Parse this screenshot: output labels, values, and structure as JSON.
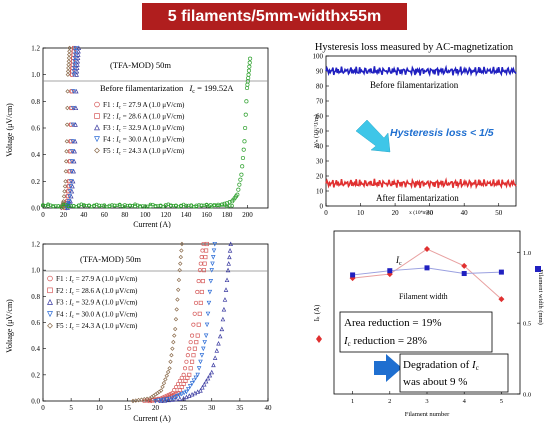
{
  "banner": {
    "title": "5 filaments/5mm-widthx55m"
  },
  "colors": {
    "banner": "#b01e1e",
    "F1": "#d65a5a",
    "F2": "#d65a5a",
    "F3": "#3a3aa0",
    "F4": "#2c6cd6",
    "F5": "#8a6a4a",
    "full": "#2ca02c",
    "green": "#2ca02c",
    "red": "#e03030",
    "blue": "#2020c0",
    "black": "#000000",
    "arrow": "#3ec6e8",
    "arrow2": "#1f6fd0"
  },
  "chart_data": [
    {
      "type": "line",
      "panel": "top-left",
      "xlabel": "Current (A)",
      "ylabel": "Voltage (μV/cm)",
      "xlim": [
        0,
        220
      ],
      "ylim": [
        0,
        1.2
      ],
      "xticks": [
        "0",
        "20",
        "40",
        "60",
        "80",
        "100",
        "120",
        "140",
        "160",
        "180",
        "200"
      ],
      "yticks": [
        "0.0",
        "0.2",
        "0.4",
        "0.6",
        "0.8",
        "1.0",
        "1.2"
      ],
      "annotations": {
        "header": "(TFA-MOD) 50m",
        "before": "Before filamentarization",
        "before_ic": "I",
        "before_ic_sub": "c",
        "before_ic_value": " = 199.52A"
      },
      "legend": [
        {
          "name": "F1",
          "label_prefix": "F1 : ",
          "ic_value": " = 27.9 A (1.0 μV/cm)",
          "marker": "circle",
          "color": "#d65a5a"
        },
        {
          "name": "F2",
          "label_prefix": "F2 : ",
          "ic_value": " = 28.6 A (1.0 μV/cm)",
          "marker": "square",
          "color": "#d65a5a"
        },
        {
          "name": "F3",
          "label_prefix": "F3 : ",
          "ic_value": " = 32.9 A (1.0 μV/cm)",
          "marker": "triangle",
          "color": "#3a3aa0"
        },
        {
          "name": "F4",
          "label_prefix": "F4 : ",
          "ic_value": " = 30.0 A (1.0 μV/cm)",
          "marker": "triangle-down",
          "color": "#2c6cd6"
        },
        {
          "name": "F5",
          "label_prefix": "F5 : ",
          "ic_value": " = 24.3 A (1.0 μV/cm)",
          "marker": "diamond",
          "color": "#8a6a4a"
        }
      ],
      "series": [
        {
          "name": "F1",
          "x": [
            21,
            23,
            25,
            26.5,
            27.9,
            29,
            30
          ],
          "y": [
            0.0,
            0.05,
            0.2,
            0.5,
            1.0,
            1.1,
            1.2
          ]
        },
        {
          "name": "F2",
          "x": [
            22,
            24,
            26,
            27.5,
            28.6,
            29.5,
            30.5
          ],
          "y": [
            0.0,
            0.05,
            0.2,
            0.5,
            1.0,
            1.1,
            1.2
          ]
        },
        {
          "name": "F3",
          "x": [
            24,
            27,
            29.5,
            31.5,
            32.9,
            34,
            35
          ],
          "y": [
            0.0,
            0.05,
            0.2,
            0.5,
            1.0,
            1.1,
            1.2
          ]
        },
        {
          "name": "F4",
          "x": [
            23,
            25.5,
            27.5,
            29,
            30.0,
            31,
            32
          ],
          "y": [
            0.0,
            0.05,
            0.2,
            0.5,
            1.0,
            1.1,
            1.2
          ]
        },
        {
          "name": "F5",
          "x": [
            18,
            20,
            22,
            23.3,
            24.3,
            25.2,
            26
          ],
          "y": [
            0.0,
            0.05,
            0.2,
            0.5,
            1.0,
            1.1,
            1.2
          ]
        },
        {
          "name": "",
          "x": [
            0,
            20,
            40,
            60,
            80,
            100,
            120,
            140,
            160,
            175,
            185,
            190,
            194,
            197,
            199.5,
            201,
            202.5
          ],
          "y": [
            0.02,
            0.01,
            0.02,
            0.015,
            0.02,
            0.01,
            0.02,
            0.015,
            0.02,
            0.025,
            0.05,
            0.1,
            0.25,
            0.5,
            0.9,
            1.0,
            1.12
          ]
        }
      ]
    },
    {
      "type": "line",
      "panel": "bottom-left",
      "xlabel": "Current (A)",
      "ylabel": "Voltage (μV/cm)",
      "xlim": [
        0,
        40
      ],
      "ylim": [
        0,
        1.2
      ],
      "xticks": [
        "0",
        "5",
        "10",
        "15",
        "20",
        "25",
        "30",
        "35",
        "40"
      ],
      "yticks": [
        "0.0",
        "0.2",
        "0.4",
        "0.6",
        "0.8",
        "1.0",
        "1.2"
      ],
      "annotations": {
        "header": "(TFA-MOD) 50m"
      },
      "legend": [
        {
          "name": "F1",
          "label_prefix": "F1 : ",
          "ic_value": " = 27.9 A (1.0 μV/cm)",
          "marker": "circle",
          "color": "#d65a5a"
        },
        {
          "name": "F2",
          "label_prefix": "F2 : ",
          "ic_value": " = 28.6 A (1.0 μV/cm)",
          "marker": "square",
          "color": "#d65a5a"
        },
        {
          "name": "F3",
          "label_prefix": "F3 : ",
          "ic_value": " = 32.9 A (1.0 μV/cm)",
          "marker": "triangle",
          "color": "#3a3aa0"
        },
        {
          "name": "F4",
          "label_prefix": "F4 : ",
          "ic_value": " = 30.0 A (1.0 μV/cm)",
          "marker": "triangle-down",
          "color": "#2c6cd6"
        },
        {
          "name": "F5",
          "label_prefix": "F5 : ",
          "ic_value": " = 24.3 A (1.0 μV/cm)",
          "marker": "diamond",
          "color": "#8a6a4a"
        }
      ],
      "series": [
        {
          "name": "F1",
          "x": [
            18,
            21,
            23,
            25,
            26.5,
            27.9,
            28.8,
            29.5
          ],
          "y": [
            0.0,
            0.02,
            0.06,
            0.2,
            0.5,
            1.0,
            1.3,
            1.6
          ]
        },
        {
          "name": "F2",
          "x": [
            19,
            22,
            24,
            26,
            27.5,
            28.6,
            29.4,
            30
          ],
          "y": [
            0.0,
            0.02,
            0.06,
            0.2,
            0.5,
            1.0,
            1.3,
            1.6
          ]
        },
        {
          "name": "F3",
          "x": [
            21,
            25,
            28,
            30,
            31.8,
            32.9,
            33.6,
            34.1
          ],
          "y": [
            0.0,
            0.02,
            0.08,
            0.22,
            0.55,
            1.0,
            1.3,
            1.6
          ]
        },
        {
          "name": "F4",
          "x": [
            20,
            23,
            25.5,
            27.5,
            29,
            30.0,
            30.8,
            31.4
          ],
          "y": [
            0.0,
            0.02,
            0.07,
            0.2,
            0.5,
            1.0,
            1.3,
            1.6
          ]
        },
        {
          "name": "F5",
          "x": [
            16,
            19,
            21,
            22.5,
            23.5,
            24.3,
            24.9,
            25.4
          ],
          "y": [
            0.0,
            0.02,
            0.08,
            0.25,
            0.55,
            1.0,
            1.3,
            1.6
          ]
        }
      ]
    },
    {
      "type": "line",
      "panel": "top-right",
      "title": "Hysteresis loss measured by AC-magnetization",
      "xlabel": "x (10⁴mm)",
      "ylabel": "Wₕ (10⁻³J/m)",
      "xlim": [
        0,
        55
      ],
      "ylim": [
        0,
        100
      ],
      "xticks": [
        "0",
        "10",
        "20",
        "30",
        "40",
        "50"
      ],
      "yticks": [
        "0",
        "10",
        "20",
        "30",
        "40",
        "50",
        "60",
        "70",
        "80",
        "90",
        "100"
      ],
      "annotations": {
        "before": "Before filamentarization",
        "after": "After filamentarization",
        "reduction": "Hysteresis loss < 1/5"
      },
      "series": [
        {
          "name": "",
          "x": [
            0,
            55
          ],
          "y": [
            90,
            90
          ]
        },
        {
          "name": "",
          "x": [
            0,
            55
          ],
          "y": [
            15,
            15
          ]
        }
      ]
    },
    {
      "type": "line",
      "panel": "bottom-right",
      "xlabel": "Filament number",
      "ylabel": "Iₖ (A)",
      "ylabel_right": "Filament width (mm)",
      "x": [
        1,
        2,
        3,
        4,
        5
      ],
      "xticks": [
        "1",
        "2",
        "3",
        "4",
        "5"
      ],
      "yticks_right": [
        "0.0",
        "0.5",
        "1.0"
      ],
      "annotations": {
        "ic_label": "I",
        "ic_sub": "c",
        "width_label": "Filament width",
        "area": "Area reduction = 19%",
        "ic_reduction_prefix": "I",
        "ic_reduction_sub": "c",
        "ic_reduction_value": " reduction = 28%",
        "degradation_1": "Degradation of ",
        "degradation_ic": "I",
        "degradation_sub": "c",
        "degradation_2": "was about 9 %"
      },
      "series": [
        {
          "name": "Ic",
          "values": [
            27.9,
            28.6,
            32.9,
            30.0,
            24.3
          ]
        },
        {
          "name": "Filament width",
          "values": [
            0.84,
            0.87,
            0.89,
            0.85,
            0.86
          ]
        }
      ]
    }
  ]
}
